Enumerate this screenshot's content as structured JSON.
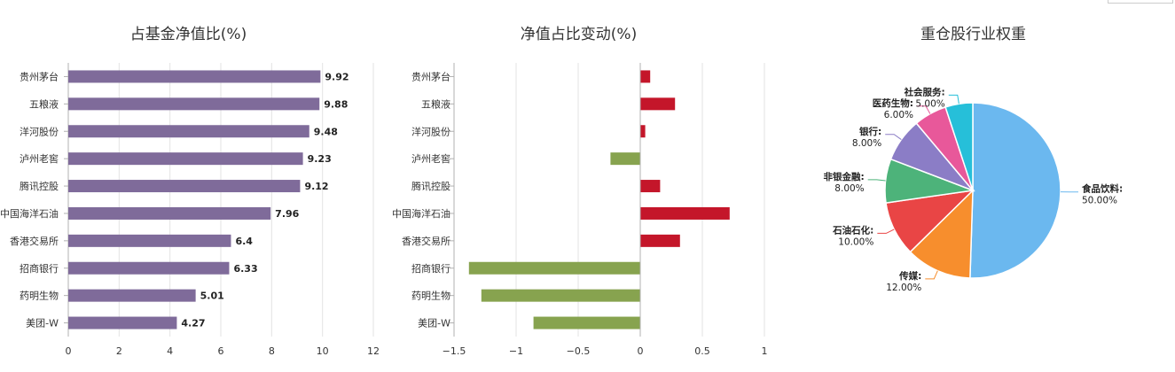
{
  "colors": {
    "bar1": "#7f6b9a",
    "positive": "#c4162a",
    "negative": "#87a34f",
    "grid": "#e3e3e3",
    "axis": "#b0b0b0",
    "text": "#333333"
  },
  "chart_data": [
    {
      "type": "bar",
      "orientation": "horizontal",
      "title": "占基金净值比(%)",
      "categories": [
        "贵州茅台",
        "五粮液",
        "洋河股份",
        "泸州老窖",
        "腾讯控股",
        "中国海洋石油",
        "香港交易所",
        "招商银行",
        "药明生物",
        "美团-W"
      ],
      "values": [
        9.92,
        9.88,
        9.48,
        9.23,
        9.12,
        7.96,
        6.4,
        6.33,
        5.01,
        4.27
      ],
      "value_labels": [
        "9.92",
        "9.88",
        "9.48",
        "9.23",
        "9.12",
        "7.96",
        "6.4",
        "6.33",
        "5.01",
        "4.27"
      ],
      "xlim": [
        0,
        12
      ],
      "xticks": [
        0,
        2,
        4,
        6,
        8,
        10,
        12
      ],
      "xtick_labels": [
        "0",
        "2",
        "4",
        "6",
        "8",
        "10",
        "12"
      ],
      "grid": true
    },
    {
      "type": "bar",
      "orientation": "horizontal",
      "title": "净值占比变动(%)",
      "categories": [
        "贵州茅台",
        "五粮液",
        "洋河股份",
        "泸州老窖",
        "腾讯控股",
        "中国海洋石油",
        "香港交易所",
        "招商银行",
        "药明生物",
        "美团-W"
      ],
      "values": [
        0.08,
        0.28,
        0.04,
        -0.24,
        0.16,
        0.72,
        0.32,
        -1.38,
        -1.28,
        -0.86
      ],
      "xlim": [
        -1.5,
        1
      ],
      "xticks": [
        -1.5,
        -1,
        -0.5,
        0,
        0.5,
        1
      ],
      "xtick_labels": [
        "−1.5",
        "−1",
        "−0.5",
        "0",
        "0.5",
        "1"
      ],
      "grid": true
    },
    {
      "type": "pie",
      "title": "重仓股行业权重",
      "slices": [
        {
          "name": "食品饮料",
          "value": 50.0,
          "label": "50.00%",
          "color": "#6bb8ef"
        },
        {
          "name": "传媒",
          "value": 12.0,
          "label": "12.00%",
          "color": "#f78e2d"
        },
        {
          "name": "石油石化",
          "value": 10.0,
          "label": "10.00%",
          "color": "#e94545"
        },
        {
          "name": "非银金融",
          "value": 8.0,
          "label": "8.00%",
          "color": "#4db37a"
        },
        {
          "name": "银行",
          "value": 8.0,
          "label": "8.00%",
          "color": "#8b7dc6"
        },
        {
          "name": "医药生物",
          "value": 6.0,
          "label": "6.00%",
          "color": "#e8589a"
        },
        {
          "name": "社会服务",
          "value": 5.0,
          "label": "5.00%",
          "color": "#26bfd9"
        }
      ]
    }
  ]
}
